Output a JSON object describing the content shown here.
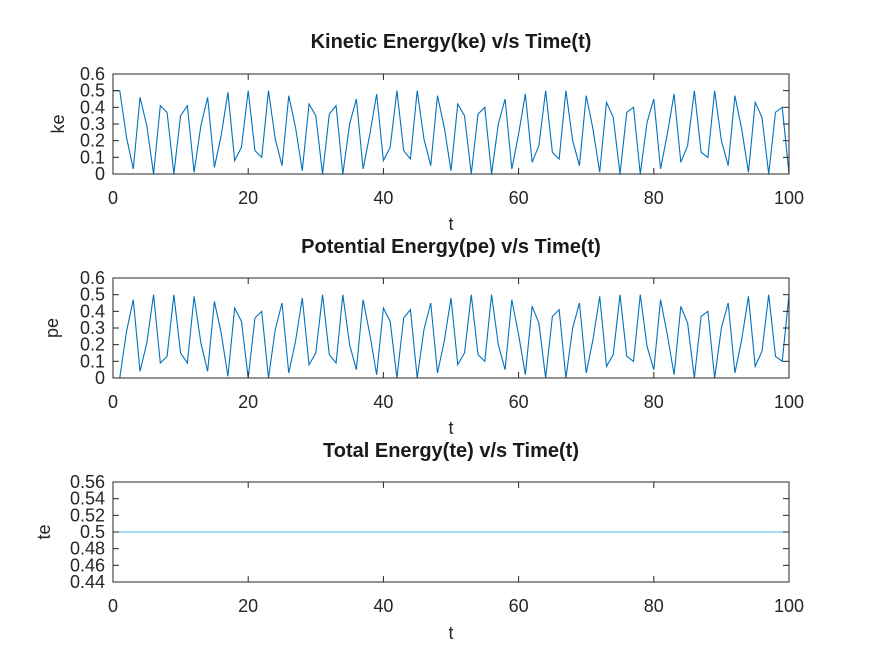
{
  "chart_data": [
    {
      "type": "line",
      "title": "Kinetic Energy(ke) v/s Time(t)",
      "xlabel": "t",
      "ylabel": "ke",
      "xlim": [
        0,
        100
      ],
      "ylim": [
        0,
        0.6
      ],
      "xticks": [
        "0",
        "20",
        "40",
        "60",
        "80",
        "100"
      ],
      "yticks": [
        "0",
        "0.1",
        "0.2",
        "0.3",
        "0.4",
        "0.5",
        "0.6"
      ],
      "grid": false,
      "color": "#0072bd",
      "series": [
        {
          "x": [
            0,
            1,
            2,
            3,
            4,
            5,
            6,
            7,
            8,
            9,
            10,
            11,
            12,
            13,
            14,
            15,
            16,
            17,
            18,
            19,
            20,
            21,
            22,
            23,
            24,
            25,
            26,
            27,
            28,
            29,
            30,
            31,
            32,
            33,
            34,
            35,
            36,
            37,
            38,
            39,
            40,
            41,
            42,
            43,
            44,
            45,
            46,
            47,
            48,
            49,
            50,
            51,
            52,
            53,
            54,
            55,
            56,
            57,
            58,
            59,
            60,
            61,
            62,
            63,
            64,
            65,
            66,
            67,
            68,
            69,
            70,
            71,
            72,
            73,
            74,
            75,
            76,
            77,
            78,
            79,
            80,
            81,
            82,
            83,
            84,
            85,
            86,
            87,
            88,
            89,
            90,
            91,
            92,
            93,
            94,
            95,
            96,
            97,
            98,
            99,
            100
          ],
          "values": [
            0.5,
            0.5,
            0.22,
            0.03,
            0.46,
            0.29,
            0.0,
            0.41,
            0.37,
            0.0,
            0.35,
            0.41,
            0.01,
            0.29,
            0.46,
            0.04,
            0.23,
            0.49,
            0.08,
            0.16,
            0.5,
            0.14,
            0.1,
            0.5,
            0.21,
            0.05,
            0.47,
            0.28,
            0.02,
            0.42,
            0.35,
            0.0,
            0.36,
            0.41,
            0.0,
            0.3,
            0.45,
            0.03,
            0.24,
            0.48,
            0.08,
            0.16,
            0.5,
            0.14,
            0.09,
            0.5,
            0.21,
            0.05,
            0.47,
            0.28,
            0.02,
            0.42,
            0.35,
            0.0,
            0.36,
            0.4,
            0.0,
            0.3,
            0.45,
            0.03,
            0.24,
            0.48,
            0.07,
            0.17,
            0.5,
            0.13,
            0.09,
            0.5,
            0.2,
            0.05,
            0.47,
            0.27,
            0.01,
            0.43,
            0.34,
            0.0,
            0.37,
            0.4,
            0.0,
            0.31,
            0.45,
            0.03,
            0.24,
            0.48,
            0.07,
            0.17,
            0.5,
            0.13,
            0.1,
            0.5,
            0.2,
            0.05,
            0.47,
            0.27,
            0.01,
            0.43,
            0.34,
            0.0,
            0.37,
            0.4,
            0.0
          ]
        }
      ]
    },
    {
      "type": "line",
      "title": "Potential Energy(pe) v/s Time(t)",
      "xlabel": "t",
      "ylabel": "pe",
      "xlim": [
        0,
        100
      ],
      "ylim": [
        0,
        0.6
      ],
      "xticks": [
        "0",
        "20",
        "40",
        "60",
        "80",
        "100"
      ],
      "yticks": [
        "0",
        "0.1",
        "0.2",
        "0.3",
        "0.4",
        "0.5",
        "0.6"
      ],
      "grid": false,
      "color": "#0072bd",
      "series": [
        {
          "x": [
            0,
            1,
            2,
            3,
            4,
            5,
            6,
            7,
            8,
            9,
            10,
            11,
            12,
            13,
            14,
            15,
            16,
            17,
            18,
            19,
            20,
            21,
            22,
            23,
            24,
            25,
            26,
            27,
            28,
            29,
            30,
            31,
            32,
            33,
            34,
            35,
            36,
            37,
            38,
            39,
            40,
            41,
            42,
            43,
            44,
            45,
            46,
            47,
            48,
            49,
            50,
            51,
            52,
            53,
            54,
            55,
            56,
            57,
            58,
            59,
            60,
            61,
            62,
            63,
            64,
            65,
            66,
            67,
            68,
            69,
            70,
            71,
            72,
            73,
            74,
            75,
            76,
            77,
            78,
            79,
            80,
            81,
            82,
            83,
            84,
            85,
            86,
            87,
            88,
            89,
            90,
            91,
            92,
            93,
            94,
            95,
            96,
            97,
            98,
            99,
            100
          ],
          "values": [
            0.0,
            0.0,
            0.28,
            0.47,
            0.04,
            0.21,
            0.5,
            0.09,
            0.13,
            0.5,
            0.15,
            0.09,
            0.49,
            0.21,
            0.04,
            0.46,
            0.27,
            0.01,
            0.42,
            0.34,
            0.0,
            0.36,
            0.4,
            0.0,
            0.29,
            0.45,
            0.03,
            0.22,
            0.48,
            0.08,
            0.15,
            0.5,
            0.14,
            0.09,
            0.5,
            0.2,
            0.05,
            0.47,
            0.26,
            0.02,
            0.42,
            0.34,
            0.0,
            0.36,
            0.41,
            0.0,
            0.29,
            0.45,
            0.03,
            0.22,
            0.48,
            0.08,
            0.15,
            0.5,
            0.14,
            0.1,
            0.5,
            0.2,
            0.05,
            0.47,
            0.26,
            0.02,
            0.43,
            0.33,
            0.0,
            0.37,
            0.41,
            0.0,
            0.3,
            0.45,
            0.03,
            0.23,
            0.49,
            0.07,
            0.14,
            0.5,
            0.13,
            0.1,
            0.5,
            0.19,
            0.05,
            0.47,
            0.26,
            0.02,
            0.43,
            0.33,
            0.0,
            0.37,
            0.4,
            0.0,
            0.3,
            0.45,
            0.03,
            0.23,
            0.49,
            0.07,
            0.16,
            0.5,
            0.13,
            0.1,
            0.5
          ]
        }
      ]
    },
    {
      "type": "line",
      "title": "Total Energy(te) v/s Time(t)",
      "xlabel": "t",
      "ylabel": "te",
      "xlim": [
        0,
        100
      ],
      "ylim": [
        0.44,
        0.56
      ],
      "xticks": [
        "0",
        "20",
        "40",
        "60",
        "80",
        "100"
      ],
      "yticks": [
        "0.44",
        "0.46",
        "0.48",
        "0.5",
        "0.52",
        "0.54",
        "0.56"
      ],
      "grid": false,
      "color": "#4dbeee",
      "series": [
        {
          "x": [
            0,
            100
          ],
          "values": [
            0.5,
            0.5
          ]
        }
      ]
    }
  ]
}
